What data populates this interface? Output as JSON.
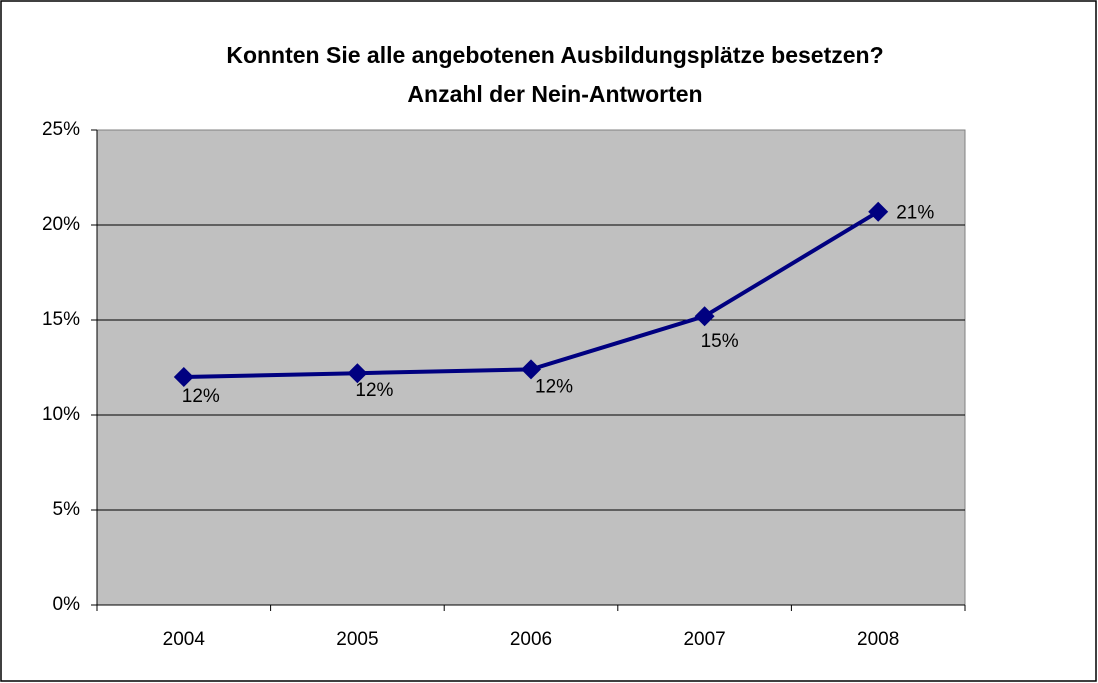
{
  "chart_data": {
    "type": "line",
    "title": [
      "Konnten Sie alle angebotenen Ausbildungsplätze besetzen?",
      "Anzahl der Nein-Antworten"
    ],
    "categories": [
      "2004",
      "2005",
      "2006",
      "2007",
      "2008"
    ],
    "series": [
      {
        "color": "#000080",
        "values": [
          12.0,
          12.2,
          12.4,
          15.2,
          20.7
        ],
        "value_labels": [
          "12%",
          "12%",
          "12%",
          "15%",
          "21%"
        ]
      }
    ],
    "ylim": [
      0,
      25
    ],
    "yticks": [
      {
        "value": 0,
        "label": "0%"
      },
      {
        "value": 5,
        "label": "5%"
      },
      {
        "value": 10,
        "label": "10%"
      },
      {
        "value": 15,
        "label": "15%"
      },
      {
        "value": 20,
        "label": "20%"
      },
      {
        "value": 25,
        "label": "25%"
      }
    ],
    "grid": true
  }
}
